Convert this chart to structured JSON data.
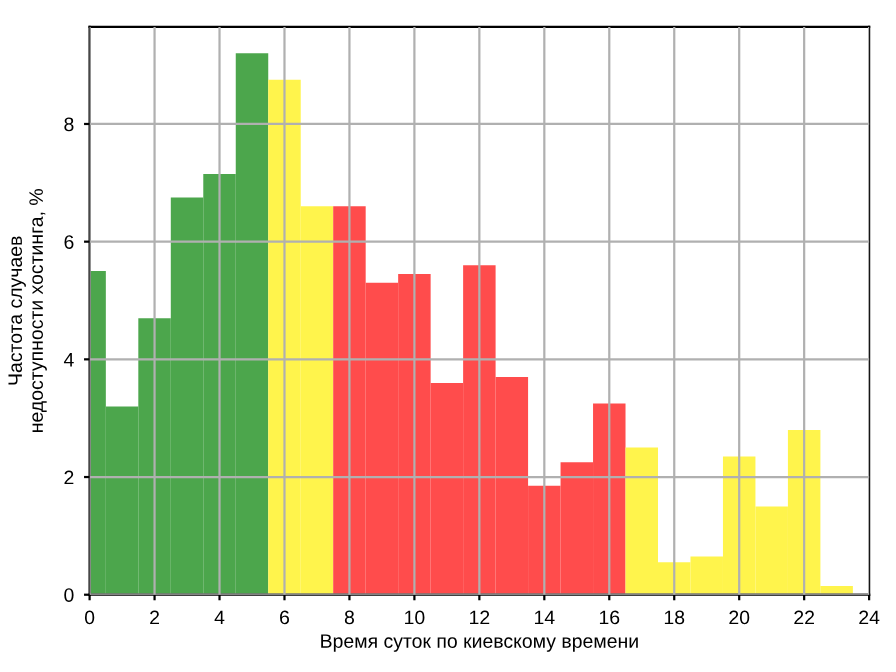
{
  "chart_data": {
    "type": "histogram",
    "xlabel": "Время суток по киевскому времени",
    "ylabel": "Частота случаев\nнедоступности хостинга, %",
    "bins": [
      0,
      0.5,
      1.5,
      2.5,
      3.5,
      4.5,
      5.5,
      6.5,
      7.5,
      8.5,
      9.5,
      10.5,
      11.5,
      12.5,
      13.5,
      14.5,
      15.5,
      16.5,
      17.5,
      18.5,
      19.5,
      20.5,
      21.5,
      22.5,
      23.5
    ],
    "values": [
      5.5,
      3.2,
      4.7,
      6.75,
      7.15,
      9.2,
      8.75,
      6.6,
      6.6,
      5.3,
      5.45,
      3.6,
      5.6,
      3.7,
      1.85,
      2.25,
      3.25,
      2.5,
      0.55,
      0.65,
      2.35,
      1.5,
      2.8,
      0.15
    ],
    "colors": [
      "#4ca64c",
      "#4ca64c",
      "#4ca64c",
      "#4ca64c",
      "#4ca64c",
      "#4ca64c",
      "#fff44c",
      "#fff44c",
      "#ff4c4c",
      "#ff4c4c",
      "#ff4c4c",
      "#ff4c4c",
      "#ff4c4c",
      "#ff4c4c",
      "#ff4c4c",
      "#ff4c4c",
      "#ff4c4c",
      "#fff44c",
      "#fff44c",
      "#fff44c",
      "#fff44c",
      "#fff44c",
      "#fff44c",
      "#fff44c"
    ],
    "xlim": [
      0,
      24
    ],
    "ylim": [
      0,
      9.65
    ],
    "xticks": [
      0,
      2,
      4,
      6,
      8,
      10,
      12,
      14,
      16,
      18,
      20,
      22,
      24
    ],
    "yticks": [
      0,
      2,
      4,
      6,
      8
    ],
    "grid": true
  }
}
